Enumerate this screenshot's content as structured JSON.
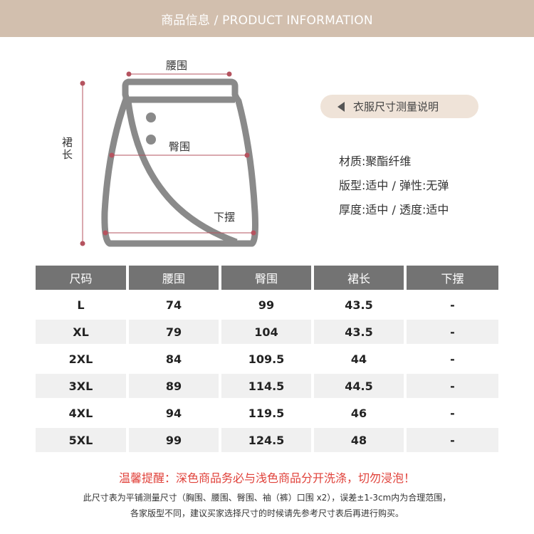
{
  "header": {
    "title": "商品信息 / PRODUCT INFORMATION"
  },
  "diagram": {
    "waist_label": "腰围",
    "hip_label": "臀围",
    "length_label": "裙长",
    "hem_label": "下摆"
  },
  "measure_button": {
    "label": "衣服尺寸测量说明"
  },
  "specs": [
    "材质:聚酯纤维",
    "版型:适中 / 弹性:无弹",
    "厚度:适中 / 透度:适中"
  ],
  "table": {
    "headers": [
      "尺码",
      "腰围",
      "臀围",
      "裙长",
      "下摆"
    ],
    "rows": [
      [
        "L",
        "74",
        "99",
        "43.5",
        "-"
      ],
      [
        "XL",
        "79",
        "104",
        "43.5",
        "-"
      ],
      [
        "2XL",
        "84",
        "109.5",
        "44",
        "-"
      ],
      [
        "3XL",
        "89",
        "114.5",
        "44.5",
        "-"
      ],
      [
        "4XL",
        "94",
        "119.5",
        "46",
        "-"
      ],
      [
        "5XL",
        "99",
        "124.5",
        "48",
        "-"
      ]
    ]
  },
  "warning": "温馨提醒：深色商品务必与浅色商品分开洗涤，切勿浸泡！",
  "notes": [
    "此尺寸表为平铺测量尺寸（胸围、腰围、臀围、袖（裤）口围 x2），误差±1-3cm内为合理范围，",
    "各家版型不同，建议买家选择尺寸的时候请先参考尺寸表后再进行购买。"
  ],
  "colors": {
    "header_bg": "#d2bfae",
    "pill_bg": "#efe3d8",
    "table_header_bg": "#737373",
    "table_row_shade": "#f0f0f0",
    "measure_line": "#b5535f",
    "skirt_outline": "#8a8a8a",
    "warning": "#e0413a"
  }
}
